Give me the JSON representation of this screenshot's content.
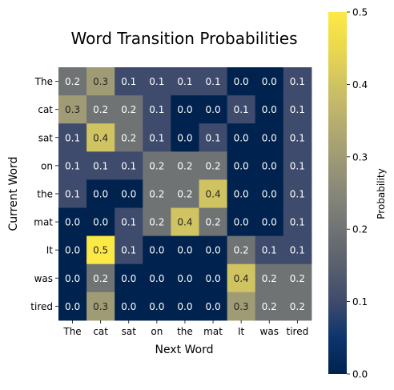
{
  "chart_data": {
    "type": "heatmap",
    "title": "Word Transition Probabilities",
    "xlabel": "Next Word",
    "ylabel": "Current Word",
    "x_categories": [
      "The",
      "cat",
      "sat",
      "on",
      "the",
      "mat",
      "It",
      "was",
      "tired"
    ],
    "y_categories": [
      "The",
      "cat",
      "sat",
      "on",
      "the",
      "mat",
      "It",
      "was",
      "tired"
    ],
    "values": [
      [
        0.2,
        0.3,
        0.1,
        0.1,
        0.1,
        0.1,
        0.0,
        0.0,
        0.1
      ],
      [
        0.3,
        0.2,
        0.2,
        0.1,
        0.0,
        0.0,
        0.1,
        0.0,
        0.1
      ],
      [
        0.1,
        0.4,
        0.2,
        0.1,
        0.0,
        0.1,
        0.0,
        0.0,
        0.1
      ],
      [
        0.1,
        0.1,
        0.1,
        0.2,
        0.2,
        0.2,
        0.0,
        0.0,
        0.1
      ],
      [
        0.1,
        0.0,
        0.0,
        0.2,
        0.2,
        0.4,
        0.0,
        0.0,
        0.1
      ],
      [
        0.0,
        0.0,
        0.1,
        0.2,
        0.4,
        0.2,
        0.0,
        0.0,
        0.1
      ],
      [
        0.0,
        0.5,
        0.1,
        0.0,
        0.0,
        0.0,
        0.2,
        0.1,
        0.1
      ],
      [
        0.0,
        0.2,
        0.0,
        0.0,
        0.0,
        0.0,
        0.4,
        0.2,
        0.2
      ],
      [
        0.0,
        0.3,
        0.0,
        0.0,
        0.0,
        0.0,
        0.3,
        0.2,
        0.2
      ]
    ],
    "colorbar": {
      "label": "Probability",
      "range": [
        0.0,
        0.5
      ],
      "ticks": [
        "0.0",
        "0.1",
        "0.2",
        "0.3",
        "0.4",
        "0.5"
      ],
      "colormap": "cividis"
    }
  }
}
